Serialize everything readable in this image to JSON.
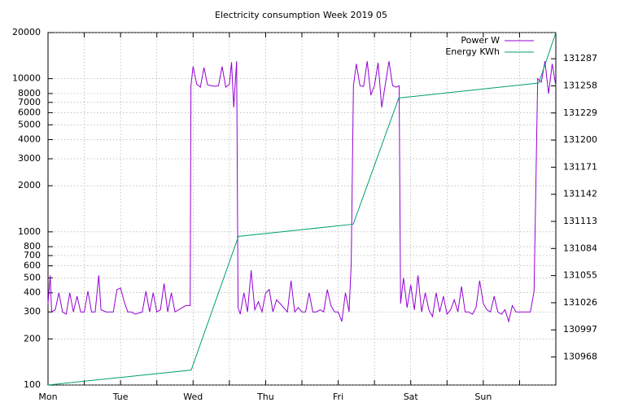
{
  "chart_data": {
    "type": "line",
    "title": "Electricity consumption Week 2019 05",
    "xlim": [
      0,
      7
    ],
    "xticks": [
      {
        "value": 0,
        "label": "Mon"
      },
      {
        "value": 0.5,
        "label": null
      },
      {
        "value": 1,
        "label": "Tue"
      },
      {
        "value": 1.5,
        "label": null
      },
      {
        "value": 2,
        "label": "Wed"
      },
      {
        "value": 2.5,
        "label": null
      },
      {
        "value": 3,
        "label": "Thu"
      },
      {
        "value": 3.5,
        "label": null
      },
      {
        "value": 4,
        "label": "Fri"
      },
      {
        "value": 4.5,
        "label": null
      },
      {
        "value": 5,
        "label": "Sat"
      },
      {
        "value": 5.5,
        "label": null
      },
      {
        "value": 6,
        "label": "Sun"
      },
      {
        "value": 6.5,
        "label": null
      }
    ],
    "ylim": [
      100,
      20000
    ],
    "yticks": [
      100,
      200,
      300,
      400,
      500,
      600,
      700,
      800,
      1000,
      2000,
      3000,
      4000,
      5000,
      6000,
      7000,
      8000,
      10000,
      20000
    ],
    "log_y": true,
    "y2lim": [
      130938,
      131315
    ],
    "y2ticks": [
      130968,
      130997,
      131026,
      131055,
      131084,
      131113,
      131142,
      131171,
      131200,
      131229,
      131258,
      131287
    ],
    "grid": true,
    "legend": "top right",
    "series": [
      {
        "name": "Power W",
        "color": "#9400d3",
        "x": [
          0,
          0.03,
          0.05,
          0.1,
          0.15,
          0.2,
          0.25,
          0.3,
          0.35,
          0.4,
          0.45,
          0.5,
          0.55,
          0.6,
          0.65,
          0.7,
          0.73,
          0.8,
          0.85,
          0.9,
          0.95,
          1.0,
          1.05,
          1.1,
          1.15,
          1.2,
          1.3,
          1.35,
          1.4,
          1.45,
          1.5,
          1.55,
          1.6,
          1.65,
          1.7,
          1.75,
          1.8,
          1.85,
          1.9,
          1.96,
          1.97,
          2.0,
          2.05,
          2.1,
          2.15,
          2.2,
          2.25,
          2.3,
          2.35,
          2.4,
          2.45,
          2.5,
          2.53,
          2.56,
          2.6,
          2.62,
          2.65,
          2.7,
          2.75,
          2.8,
          2.85,
          2.9,
          2.95,
          3.0,
          3.05,
          3.1,
          3.15,
          3.2,
          3.3,
          3.35,
          3.4,
          3.45,
          3.5,
          3.55,
          3.6,
          3.65,
          3.7,
          3.75,
          3.8,
          3.85,
          3.9,
          3.95,
          4.0,
          4.05,
          4.1,
          4.15,
          4.18,
          4.21,
          4.25,
          4.3,
          4.35,
          4.4,
          4.45,
          4.5,
          4.55,
          4.6,
          4.65,
          4.7,
          4.75,
          4.8,
          4.84,
          4.86,
          4.9,
          4.95,
          5.0,
          5.05,
          5.1,
          5.15,
          5.2,
          5.25,
          5.3,
          5.35,
          5.4,
          5.45,
          5.5,
          5.55,
          5.6,
          5.65,
          5.7,
          5.75,
          5.8,
          5.85,
          5.9,
          5.95,
          6.0,
          6.05,
          6.1,
          6.15,
          6.2,
          6.25,
          6.3,
          6.35,
          6.4,
          6.45,
          6.5,
          6.55,
          6.6,
          6.65,
          6.7,
          6.75,
          6.8,
          6.85,
          6.9,
          6.95,
          7.0
        ],
        "values": [
          340,
          520,
          300,
          310,
          400,
          300,
          290,
          400,
          300,
          380,
          300,
          300,
          410,
          300,
          300,
          520,
          310,
          300,
          300,
          300,
          420,
          430,
          350,
          300,
          300,
          290,
          300,
          410,
          300,
          400,
          300,
          310,
          460,
          300,
          400,
          300,
          310,
          320,
          330,
          330,
          9000,
          12000,
          9200,
          8800,
          11800,
          9100,
          9000,
          8900,
          9000,
          12000,
          8800,
          9200,
          12800,
          6500,
          13000,
          320,
          290,
          400,
          300,
          560,
          310,
          350,
          300,
          400,
          420,
          300,
          360,
          340,
          300,
          480,
          300,
          320,
          300,
          300,
          400,
          300,
          300,
          310,
          300,
          420,
          330,
          300,
          300,
          260,
          400,
          300,
          630,
          9000,
          12500,
          9000,
          8900,
          13000,
          7800,
          9000,
          12700,
          6500,
          9200,
          13000,
          9000,
          8800,
          9000,
          340,
          500,
          320,
          450,
          310,
          520,
          300,
          400,
          310,
          280,
          400,
          300,
          380,
          290,
          310,
          360,
          300,
          440,
          300,
          300,
          290,
          320,
          480,
          340,
          310,
          300,
          380,
          300,
          290,
          310,
          260,
          330,
          300,
          300,
          300,
          300,
          300,
          410,
          10000,
          9500,
          13000,
          8000,
          12500,
          9000
        ]
      },
      {
        "name": "Energy KWh",
        "color": "#009e73",
        "axis": "y2",
        "x": [
          0,
          1.974,
          2.625,
          4.207,
          4.835,
          6.765,
          7
        ],
        "values": [
          130938,
          130954,
          131097,
          131110,
          131245,
          131261,
          131315
        ]
      }
    ]
  }
}
